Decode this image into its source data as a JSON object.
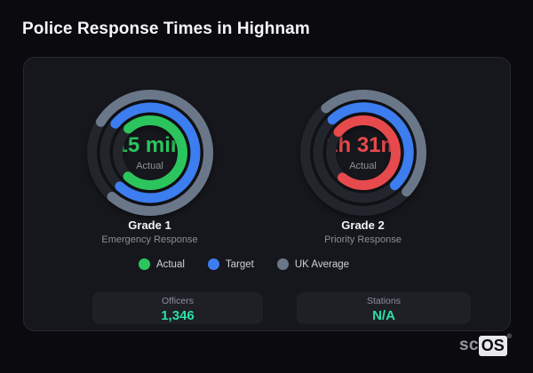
{
  "page": {
    "title": "Police Response Times in Highnam"
  },
  "colors": {
    "green": "#2cc55d",
    "blue": "#3c7df0",
    "slate": "#6a7789",
    "red": "#e74a4c",
    "track": "#23252c",
    "mint": "#2ae0a4",
    "card_bg": "#16171c",
    "page_bg": "#0a0a0f"
  },
  "chart_data": {
    "type": "radial-gauge",
    "legend": [
      {
        "label": "Actual",
        "color": "green"
      },
      {
        "label": "Target",
        "color": "blue"
      },
      {
        "label": "UK Average",
        "color": "slate"
      }
    ],
    "gauges": [
      {
        "name": "Grade 1",
        "description": "Emergency Response",
        "value": "15 min",
        "value_label": "Actual",
        "value_color": "green",
        "rings": [
          {
            "series": "UK Average",
            "color": "slate",
            "radius": 65.5,
            "start_deg": 302,
            "end_deg": 221
          },
          {
            "series": "Target",
            "color": "blue",
            "radius": 51,
            "start_deg": 310,
            "end_deg": 222
          },
          {
            "series": "Actual",
            "color": "green",
            "radius": 36.5,
            "start_deg": 318,
            "end_deg": 223
          }
        ]
      },
      {
        "name": "Grade 2",
        "description": "Priority Response",
        "value": "1h 31m",
        "value_label": "Actual",
        "value_color": "red",
        "rings": [
          {
            "series": "UK Average",
            "color": "slate",
            "radius": 65.5,
            "start_deg": 320,
            "end_deg": 132
          },
          {
            "series": "Target",
            "color": "blue",
            "radius": 51,
            "start_deg": 317,
            "end_deg": 136
          },
          {
            "series": "Actual",
            "color": "red",
            "radius": 36.5,
            "start_deg": 310,
            "end_deg": 220
          }
        ]
      }
    ]
  },
  "stats": [
    {
      "label": "Officers",
      "value": "1,346"
    },
    {
      "label": "Stations",
      "value": "N/A"
    }
  ],
  "watermark": {
    "prefix": "sc",
    "brand": "OS",
    "reg": "®"
  }
}
